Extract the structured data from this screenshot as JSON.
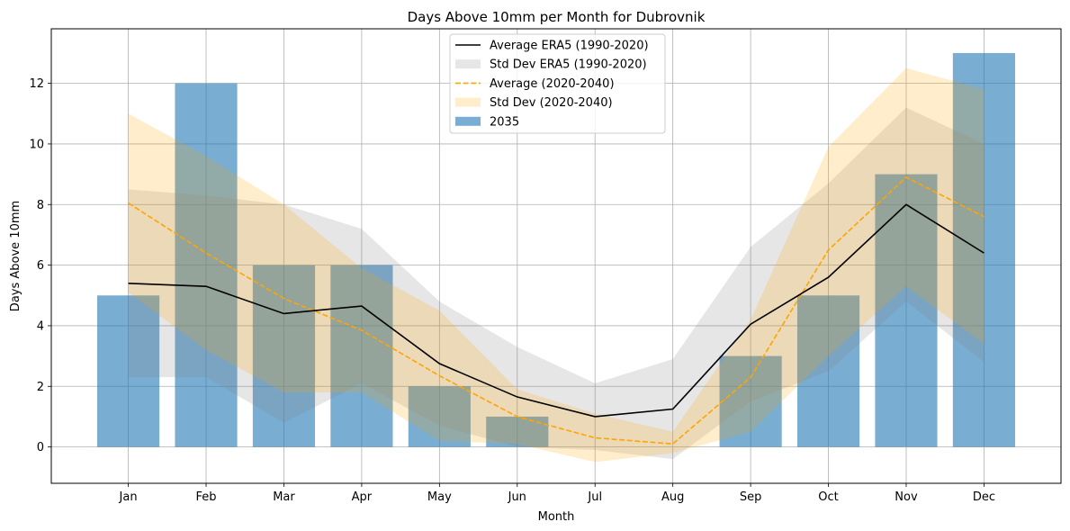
{
  "chart_data": {
    "type": "bar",
    "title": "Days Above 10mm per Month for Dubrovnik",
    "xlabel": "Month",
    "ylabel": "Days Above 10mm",
    "categories": [
      "Jan",
      "Feb",
      "Mar",
      "Apr",
      "May",
      "Jun",
      "Jul",
      "Aug",
      "Sep",
      "Oct",
      "Nov",
      "Dec"
    ],
    "ylim": [
      -1.2,
      13.8
    ],
    "yticks": [
      "0",
      "2",
      "4",
      "6",
      "8",
      "10",
      "12"
    ],
    "grid": true,
    "legend_position": "top-center",
    "series": [
      {
        "name": "2035",
        "kind": "bar",
        "color": "#1f77b4",
        "values": [
          5,
          12,
          6,
          6,
          2,
          1,
          0,
          0,
          3,
          5,
          9,
          13
        ]
      },
      {
        "name": "Average ERA5 (1990-2020)",
        "kind": "line",
        "color": "#000000",
        "values": [
          5.4,
          5.3,
          4.4,
          4.65,
          2.75,
          1.65,
          1.0,
          1.25,
          4.05,
          5.6,
          8.0,
          6.4
        ]
      },
      {
        "name": "Std Dev ERA5 (1990-2020)",
        "kind": "band",
        "color": "#808080",
        "lower": [
          2.3,
          2.3,
          0.8,
          2.1,
          0.7,
          0.0,
          -0.1,
          -0.4,
          1.5,
          2.5,
          4.8,
          2.8
        ],
        "upper": [
          8.5,
          8.3,
          8.0,
          7.2,
          4.8,
          3.3,
          2.1,
          2.9,
          6.6,
          8.7,
          11.2,
          10.0
        ]
      },
      {
        "name": "Average (2020-2040)",
        "kind": "dashed-line",
        "color": "#ffa500",
        "values": [
          8.05,
          6.4,
          4.9,
          3.85,
          2.35,
          1.0,
          0.3,
          0.1,
          2.3,
          6.5,
          8.9,
          7.6
        ]
      },
      {
        "name": "Std Dev (2020-2040)",
        "kind": "band",
        "color": "#ffa500",
        "lower": [
          5.1,
          3.2,
          1.8,
          1.8,
          0.2,
          0.1,
          -0.5,
          -0.2,
          0.5,
          3.0,
          5.3,
          3.4
        ],
        "upper": [
          11.0,
          9.6,
          8.0,
          5.9,
          4.5,
          1.9,
          1.1,
          0.5,
          4.2,
          9.9,
          12.5,
          11.8
        ]
      }
    ],
    "legend": [
      {
        "label": "Average ERA5 (1990-2020)",
        "swatch": "line",
        "color": "#000000"
      },
      {
        "label": "Std Dev ERA5 (1990-2020)",
        "swatch": "fill",
        "color": "#808080"
      },
      {
        "label": "Average (2020-2040)",
        "swatch": "dashed",
        "color": "#ffa500"
      },
      {
        "label": "Std Dev (2020-2040)",
        "swatch": "fill",
        "color": "#ffa500"
      },
      {
        "label": "2035",
        "swatch": "fill",
        "color": "#1f77b4"
      }
    ]
  }
}
